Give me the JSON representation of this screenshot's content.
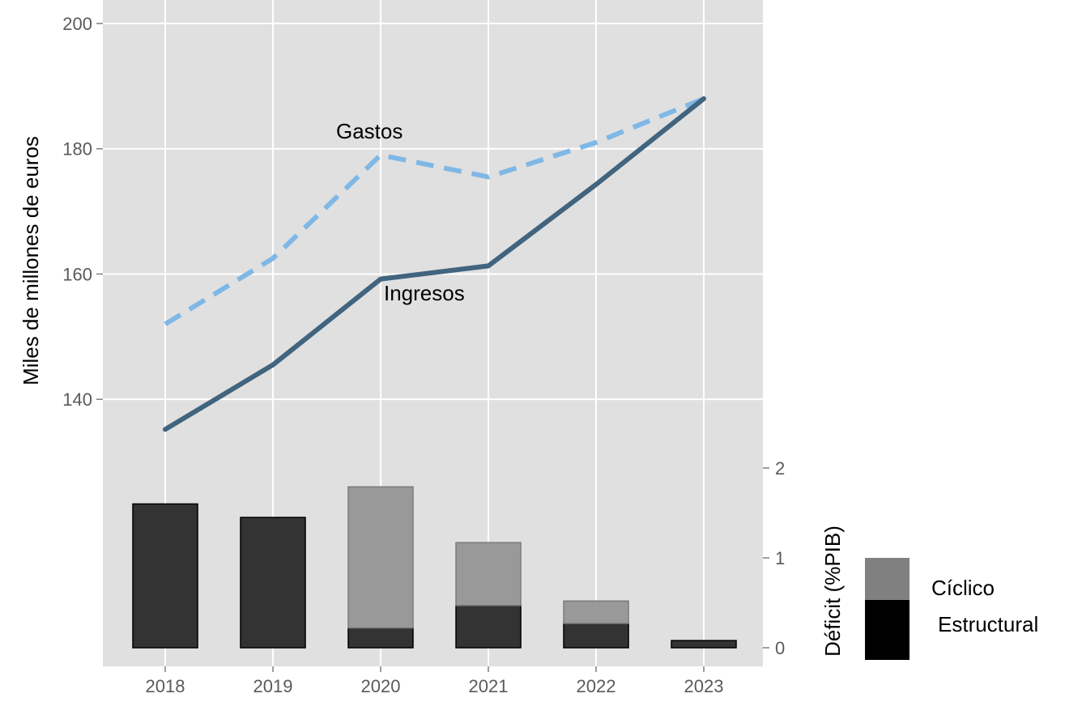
{
  "chart_data": [
    {
      "type": "line",
      "title": "",
      "ylabel": "Miles de millones de euros",
      "xlabel": "",
      "x": [
        "2018",
        "2019",
        "2020",
        "2021",
        "2022",
        "2023"
      ],
      "ylim": [
        118,
        203
      ],
      "yticks": [
        "140",
        "160",
        "180",
        "200"
      ],
      "grid": true,
      "series": [
        {
          "name": "Gastos",
          "style": "dashed",
          "color": "#7fb8e6",
          "values": [
            152,
            162.5,
            179,
            175.5,
            181,
            188
          ]
        },
        {
          "name": "Ingresos",
          "style": "solid",
          "color": "#41647f",
          "values": [
            135.2,
            145.5,
            159.2,
            161.3,
            174.3,
            188
          ]
        }
      ],
      "annotations": [
        {
          "text": "Gastos",
          "series": "Gastos",
          "x": "2020"
        },
        {
          "text": "Ingresos",
          "series": "Ingresos",
          "x": "2020"
        }
      ]
    },
    {
      "type": "bar",
      "stacked": true,
      "title": "",
      "xlabel": "",
      "ylabel": "Déficit (%PIB)",
      "categories": [
        "2018",
        "2019",
        "2020",
        "2021",
        "2022",
        "2023"
      ],
      "ylim": [
        0,
        2
      ],
      "yticks": [
        "0",
        "1",
        "2"
      ],
      "series": [
        {
          "name": "Estructural",
          "color": "#333333",
          "values": [
            1.6,
            1.45,
            0.22,
            0.47,
            0.27,
            0.08
          ]
        },
        {
          "name": "Cíclico",
          "color": "#999999",
          "values": [
            0,
            0,
            1.57,
            0.7,
            0.25,
            0
          ]
        }
      ],
      "legend": {
        "position": "right",
        "entries": [
          {
            "label": "Cíclico",
            "color": "#808080"
          },
          {
            "label": "Estructural",
            "color": "#000000"
          }
        ]
      }
    }
  ]
}
